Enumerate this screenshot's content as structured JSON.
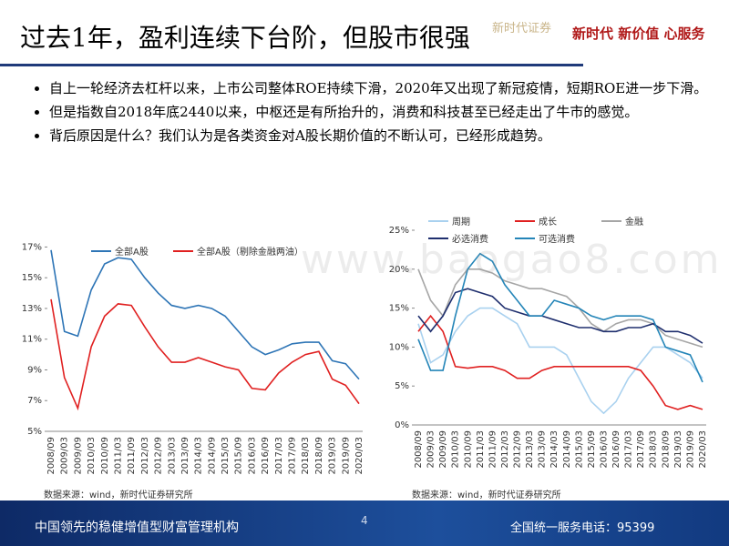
{
  "header": {
    "title": "过去1年，盈利连续下台阶，但股市很强",
    "brand": "新时代证券",
    "logo_text": "新时代 新价值 心服务"
  },
  "bullets": [
    "自上一轮经济去杠杆以来，上市公司整体ROE持续下滑，2020年又出现了新冠疫情，短期ROE进一步下滑。",
    "但是指数自2018年底2440以来，中枢还是有所抬升的，消费和科技甚至已经走出了牛市的感觉。",
    "背后原因是什么？我们认为是各类资金对A股长期价值的不断认可，已经形成趋势。"
  ],
  "watermark": "www.baogao8.com",
  "chart_data": [
    {
      "type": "line",
      "source": "数据来源：wind，新时代证券研究所",
      "categories": [
        "2008/09",
        "2009/03",
        "2009/09",
        "2010/03",
        "2010/09",
        "2011/03",
        "2011/09",
        "2012/03",
        "2012/09",
        "2013/03",
        "2013/09",
        "2014/03",
        "2014/09",
        "2015/03",
        "2015/09",
        "2016/03",
        "2016/09",
        "2017/03",
        "2017/09",
        "2018/03",
        "2018/09",
        "2019/03",
        "2019/09",
        "2020/03"
      ],
      "series": [
        {
          "name": "全部A股",
          "color": "#2e75b6",
          "values": [
            16.8,
            11.5,
            11.2,
            14.2,
            15.9,
            16.3,
            16.2,
            15.0,
            14.0,
            13.2,
            13.0,
            13.2,
            13.0,
            12.5,
            11.5,
            10.5,
            10.0,
            10.3,
            10.7,
            10.8,
            10.8,
            9.6,
            9.4,
            8.4
          ]
        },
        {
          "name": "全部A股（剔除金融两油）",
          "color": "#e02020",
          "values": [
            13.6,
            8.5,
            6.5,
            10.5,
            12.5,
            13.3,
            13.2,
            11.8,
            10.5,
            9.5,
            9.5,
            9.8,
            9.5,
            9.2,
            9.0,
            7.8,
            7.7,
            8.8,
            9.5,
            10.0,
            10.2,
            8.4,
            8.0,
            6.8
          ]
        }
      ],
      "ylim": [
        5,
        17.5
      ],
      "yticks": [
        {
          "value": 5,
          "label": "5%"
        },
        {
          "value": 7,
          "label": "7%"
        },
        {
          "value": 9,
          "label": "9%"
        },
        {
          "value": 11,
          "label": "11%"
        },
        {
          "value": 13,
          "label": "13%"
        },
        {
          "value": 15,
          "label": "15%"
        },
        {
          "value": 17,
          "label": "17%"
        }
      ]
    },
    {
      "type": "line",
      "source": "数据来源：wind，新时代证券研究所",
      "categories": [
        "2008/09",
        "2009/03",
        "2009/09",
        "2010/03",
        "2010/09",
        "2011/03",
        "2011/09",
        "2012/03",
        "2012/09",
        "2013/03",
        "2013/09",
        "2014/03",
        "2014/09",
        "2015/03",
        "2015/09",
        "2016/03",
        "2016/09",
        "2017/03",
        "2017/09",
        "2018/03",
        "2018/09",
        "2019/03",
        "2019/09",
        "2020/03"
      ],
      "series": [
        {
          "name": "周期",
          "color": "#a9d1ef",
          "values": [
            13,
            8,
            9,
            12,
            14,
            15,
            15,
            14,
            13,
            10,
            10,
            10,
            9,
            6,
            3,
            1.5,
            3,
            6,
            8,
            10,
            10,
            9,
            8,
            6
          ]
        },
        {
          "name": "成长",
          "color": "#e02020",
          "values": [
            12,
            14,
            12,
            7.5,
            7.3,
            7.5,
            7.5,
            7,
            6,
            6,
            7,
            7.5,
            7.5,
            7.5,
            7.5,
            7.5,
            7.5,
            7.5,
            7,
            5,
            2.5,
            2,
            2.5,
            2
          ]
        },
        {
          "name": "金融",
          "color": "#a6a6a6",
          "values": [
            20,
            16,
            14,
            18,
            20,
            20,
            19.5,
            18.5,
            18,
            17.5,
            17.5,
            17,
            16.5,
            15,
            13,
            12,
            13,
            13.5,
            13.5,
            13,
            11.5,
            11,
            10.5,
            10
          ]
        },
        {
          "name": "必选消费",
          "color": "#1f2f6e",
          "values": [
            14,
            12,
            14,
            17,
            17.5,
            17,
            16.5,
            15,
            14.5,
            14,
            14,
            13.5,
            13,
            12.5,
            12.5,
            12,
            12,
            12.5,
            12.5,
            13,
            12,
            12,
            11.5,
            10.5
          ]
        },
        {
          "name": "可选消费",
          "color": "#2485b8",
          "values": [
            11,
            7,
            7,
            14,
            20,
            22,
            21,
            18,
            16,
            14,
            14,
            16,
            15.5,
            15,
            14,
            13.5,
            14,
            14,
            14,
            13.5,
            10,
            9.5,
            9,
            5.5
          ]
        }
      ],
      "ylim": [
        0,
        25
      ],
      "yticks": [
        {
          "value": 0,
          "label": "0%"
        },
        {
          "value": 5,
          "label": "5%"
        },
        {
          "value": 10,
          "label": "10%"
        },
        {
          "value": 15,
          "label": "15%"
        },
        {
          "value": 20,
          "label": "20%"
        },
        {
          "value": 25,
          "label": "25%"
        }
      ]
    }
  ],
  "footer": {
    "slogan": "中国领先的稳健增值型财富管理机构",
    "page": "4",
    "hotline": "全国统一服务电话：95399"
  }
}
